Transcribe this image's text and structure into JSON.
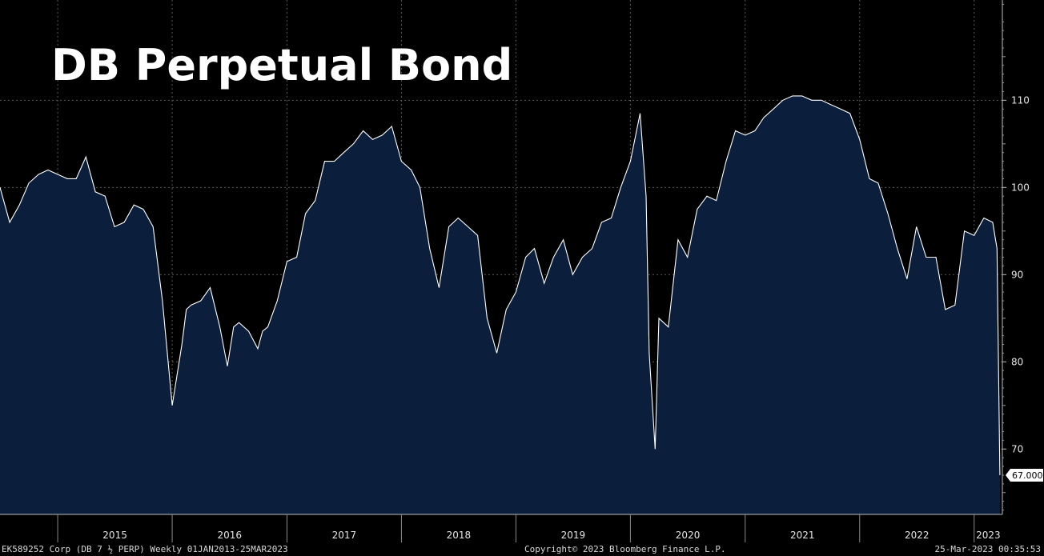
{
  "chart_data": {
    "type": "area",
    "title": "DB Perpetual Bond",
    "x_tick_labels": [
      "2015",
      "2016",
      "2017",
      "2018",
      "2019",
      "2020",
      "2021",
      "2022",
      "2023"
    ],
    "y_ticks": [
      70,
      80,
      90,
      100,
      110
    ],
    "ylim": [
      62.5,
      121.5
    ],
    "xlim": [
      "2014-07",
      "2023-04"
    ],
    "grid": true,
    "line_color": "#ffffff",
    "fill_color": "#0b1f3c",
    "last_value_label": "67.000",
    "series": [
      {
        "x": [
          "2014-07-01",
          "2014-08-01",
          "2014-09-01",
          "2014-10-01",
          "2014-11-01",
          "2014-12-01",
          "2015-01-01",
          "2015-02-01",
          "2015-03-01",
          "2015-04-01",
          "2015-05-01",
          "2015-06-01",
          "2015-07-01",
          "2015-08-01",
          "2015-09-01",
          "2015-10-01",
          "2015-11-01",
          "2015-12-01",
          "2016-01-01",
          "2016-02-01",
          "2016-02-15",
          "2016-03-01",
          "2016-04-01",
          "2016-05-01",
          "2016-06-01",
          "2016-06-25",
          "2016-07-15",
          "2016-08-01",
          "2016-09-01",
          "2016-09-30",
          "2016-10-15",
          "2016-11-01",
          "2016-12-01",
          "2017-01-01",
          "2017-02-01",
          "2017-03-01",
          "2017-04-01",
          "2017-05-01",
          "2017-06-01",
          "2017-07-01",
          "2017-08-01",
          "2017-09-01",
          "2017-10-01",
          "2017-11-01",
          "2017-12-01",
          "2018-01-01",
          "2018-02-01",
          "2018-03-01",
          "2018-04-01",
          "2018-05-01",
          "2018-06-01",
          "2018-07-01",
          "2018-08-01",
          "2018-09-01",
          "2018-10-01",
          "2018-11-01",
          "2018-12-01",
          "2019-01-01",
          "2019-02-01",
          "2019-03-01",
          "2019-04-01",
          "2019-05-01",
          "2019-06-01",
          "2019-07-01",
          "2019-08-01",
          "2019-09-01",
          "2019-10-01",
          "2019-11-01",
          "2019-12-01",
          "2020-01-01",
          "2020-02-01",
          "2020-02-20",
          "2020-03-01",
          "2020-03-20",
          "2020-04-01",
          "2020-05-01",
          "2020-06-01",
          "2020-07-01",
          "2020-08-01",
          "2020-09-01",
          "2020-10-01",
          "2020-11-01",
          "2020-12-01",
          "2021-01-01",
          "2021-02-01",
          "2021-03-01",
          "2021-04-01",
          "2021-05-01",
          "2021-06-01",
          "2021-07-01",
          "2021-08-01",
          "2021-09-01",
          "2021-10-01",
          "2021-11-01",
          "2021-12-01",
          "2022-01-01",
          "2022-02-01",
          "2022-03-01",
          "2022-04-01",
          "2022-05-01",
          "2022-06-01",
          "2022-07-01",
          "2022-08-01",
          "2022-09-01",
          "2022-10-01",
          "2022-11-01",
          "2022-12-01",
          "2023-01-01",
          "2023-02-01",
          "2023-03-01",
          "2023-03-15",
          "2023-03-24"
        ],
        "values": [
          100.0,
          96.0,
          98.0,
          100.5,
          101.5,
          102.0,
          101.5,
          101.0,
          101.0,
          103.5,
          99.5,
          99.0,
          95.5,
          96.0,
          98.0,
          97.5,
          95.5,
          87.0,
          75.0,
          82.0,
          86.0,
          86.5,
          87.0,
          88.5,
          84.0,
          79.5,
          84.0,
          84.5,
          83.5,
          81.5,
          83.5,
          84.0,
          87.0,
          91.5,
          92.0,
          97.0,
          98.5,
          103.0,
          103.0,
          104.0,
          105.0,
          106.5,
          105.5,
          106.0,
          107.0,
          103.0,
          102.0,
          100.0,
          93.0,
          88.5,
          95.5,
          96.5,
          95.5,
          94.5,
          85.0,
          81.0,
          86.0,
          88.0,
          92.0,
          93.0,
          89.0,
          92.0,
          94.0,
          90.0,
          92.0,
          93.0,
          96.0,
          96.5,
          100.0,
          103.0,
          108.5,
          99.0,
          81.0,
          70.0,
          85.0,
          84.0,
          94.0,
          92.0,
          97.5,
          99.0,
          98.5,
          103.0,
          106.5,
          106.0,
          106.5,
          108.0,
          109.0,
          110.0,
          110.5,
          110.5,
          110.0,
          110.0,
          109.5,
          109.0,
          108.5,
          105.5,
          101.0,
          100.5,
          97.0,
          93.0,
          89.5,
          95.5,
          92.0,
          92.0,
          86.0,
          86.5,
          95.0,
          94.5,
          96.5,
          96.0,
          93.0,
          67.0
        ]
      }
    ]
  },
  "footer": {
    "left": "EK589252 Corp (DB 7 ½ PERP) Weekly 01JAN2013-25MAR2023",
    "center": "Copyright© 2023 Bloomberg Finance L.P.",
    "right": "25-Mar-2023 00:35:53"
  }
}
